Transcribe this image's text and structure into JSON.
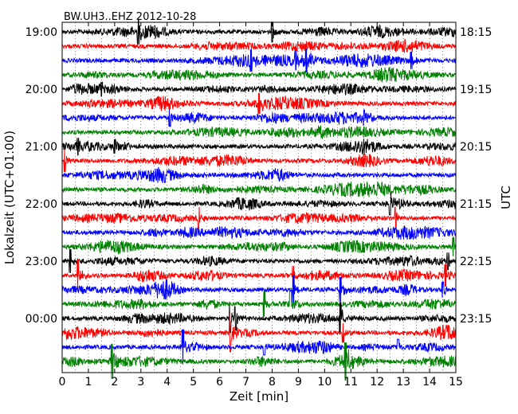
{
  "chart_data": {
    "type": "line",
    "title": "BW.UH3..EHZ 2012-10-28",
    "xlabel": "Zeit  [min]",
    "ylabel_left": "Lokalzeit (UTC+01:00)",
    "ylabel_right": "UTC",
    "xlim": [
      0,
      15
    ],
    "x_ticks": [
      "0",
      "1",
      "2",
      "3",
      "4",
      "5",
      "6",
      "7",
      "8",
      "9",
      "10",
      "11",
      "12",
      "13",
      "14",
      "15"
    ],
    "left_ticks": [
      "19:00",
      "20:00",
      "21:00",
      "22:00",
      "23:00",
      "00:00"
    ],
    "right_ticks": [
      "18:15",
      "19:15",
      "20:15",
      "21:15",
      "22:15",
      "23:15"
    ],
    "trace_colors": [
      "#000000",
      "#ff0000",
      "#0000ff",
      "#008000"
    ],
    "num_traces": 24,
    "grid": "vertical-dotted",
    "spikes": [
      {
        "trace": 0,
        "x": 2.9,
        "amp": 1.6
      },
      {
        "trace": 0,
        "x": 8.0,
        "amp": 1.3
      },
      {
        "trace": 2,
        "x": 7.2,
        "amp": 1.4
      },
      {
        "trace": 2,
        "x": 8.9,
        "amp": 1.2
      },
      {
        "trace": 2,
        "x": 9.3,
        "amp": 1.5
      },
      {
        "trace": 2,
        "x": 13.3,
        "amp": 1.1
      },
      {
        "trace": 4,
        "x": 1.5,
        "amp": 0.9
      },
      {
        "trace": 5,
        "x": 7.5,
        "amp": 1.3
      },
      {
        "trace": 6,
        "x": 4.1,
        "amp": 1.1
      },
      {
        "trace": 6,
        "x": 11.5,
        "amp": 1.0
      },
      {
        "trace": 8,
        "x": 0.6,
        "amp": 1.1
      },
      {
        "trace": 8,
        "x": 2.0,
        "amp": 0.9
      },
      {
        "trace": 9,
        "x": 0.1,
        "amp": 1.4
      },
      {
        "trace": 12,
        "x": 12.5,
        "amp": 1.4
      },
      {
        "trace": 13,
        "x": 5.2,
        "amp": 1.4
      },
      {
        "trace": 13,
        "x": 12.7,
        "amp": 1.4
      },
      {
        "trace": 15,
        "x": 14.9,
        "amp": 1.2
      },
      {
        "trace": 16,
        "x": 0.3,
        "amp": 1.5
      },
      {
        "trace": 16,
        "x": 14.7,
        "amp": 1.1
      },
      {
        "trace": 17,
        "x": 0.6,
        "amp": 2.0
      },
      {
        "trace": 17,
        "x": 8.8,
        "amp": 1.2
      },
      {
        "trace": 17,
        "x": 14.6,
        "amp": 1.4
      },
      {
        "trace": 18,
        "x": 8.8,
        "amp": 1.9
      },
      {
        "trace": 18,
        "x": 10.6,
        "amp": 1.6
      },
      {
        "trace": 18,
        "x": 14.5,
        "amp": 1.0
      },
      {
        "trace": 19,
        "x": 7.7,
        "amp": 1.6
      },
      {
        "trace": 19,
        "x": 8.7,
        "amp": 2.0
      },
      {
        "trace": 20,
        "x": 6.4,
        "amp": 1.8
      },
      {
        "trace": 20,
        "x": 6.6,
        "amp": 1.5
      },
      {
        "trace": 20,
        "x": 10.6,
        "amp": 2.0
      },
      {
        "trace": 21,
        "x": 6.4,
        "amp": 2.4
      },
      {
        "trace": 21,
        "x": 10.7,
        "amp": 1.2
      },
      {
        "trace": 22,
        "x": 4.6,
        "amp": 2.2
      },
      {
        "trace": 22,
        "x": 7.7,
        "amp": 1.0
      },
      {
        "trace": 22,
        "x": 12.8,
        "amp": 1.0
      },
      {
        "trace": 23,
        "x": 1.9,
        "amp": 2.2
      },
      {
        "trace": 23,
        "x": 10.8,
        "amp": 2.4
      }
    ]
  }
}
